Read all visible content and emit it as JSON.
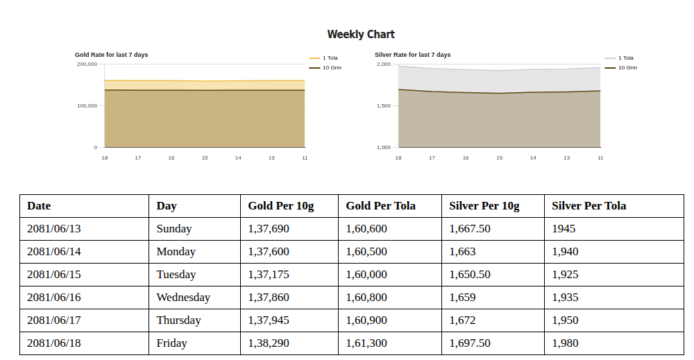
{
  "title": "Weekly Chart",
  "chart_data": [
    {
      "type": "line",
      "title": "Gold Rate for last 7 days",
      "categories": [
        "18",
        "17",
        "16",
        "15",
        "14",
        "13",
        "11"
      ],
      "series": [
        {
          "name": "1 Tola",
          "color": "#f0bf4c",
          "values": [
            161300,
            160900,
            160800,
            160000,
            160500,
            160600,
            160600
          ]
        },
        {
          "name": "10 Grm",
          "color": "#5e4a14",
          "values": [
            138290,
            137945,
            137860,
            137175,
            137600,
            137690,
            137700
          ]
        }
      ],
      "ylim": [
        0,
        200000
      ],
      "yticks": [
        0,
        {
          "value": 100000,
          "label": "100,000"
        },
        {
          "value": 200000,
          "label": "200,000"
        }
      ],
      "grid": true,
      "legend": "right"
    },
    {
      "type": "line",
      "title": "Silver Rate for last 7 days",
      "categories": [
        "18",
        "17",
        "16",
        "15",
        "14",
        "13",
        "11"
      ],
      "series": [
        {
          "name": "1 Tola",
          "color": "#cfcfcf",
          "values": [
            1980,
            1950,
            1935,
            1925,
            1940,
            1945,
            1960
          ]
        },
        {
          "name": "10 Grm",
          "color": "#5e4a14",
          "values": [
            1697.5,
            1672,
            1659,
            1650.5,
            1663,
            1667.5,
            1680
          ]
        }
      ],
      "ylim": [
        1000,
        2000
      ],
      "yticks": [
        {
          "value": 1000,
          "label": "1,000"
        },
        {
          "value": 1500,
          "label": "1,500"
        },
        {
          "value": 2000,
          "label": "2,000"
        }
      ],
      "grid": true,
      "legend": "right"
    }
  ],
  "table": {
    "header": [
      "Date",
      "Day",
      "Gold Per 10g",
      "Gold Per Tola",
      "Silver Per 10g",
      "Silver Per Tola"
    ],
    "rows": [
      [
        "2081/06/13",
        "Sunday",
        "1,37,690",
        "1,60,600",
        "1,667.50",
        "1945"
      ],
      [
        "2081/06/14",
        "Monday",
        "1,37,600",
        "1,60,500",
        "1,663",
        "1,940"
      ],
      [
        "2081/06/15",
        "Tuesday",
        "1,37,175",
        "1,60,000",
        "1,650.50",
        "1,925"
      ],
      [
        "2081/06/16",
        "Wednesday",
        "1,37,860",
        "1,60,800",
        "1,659",
        "1,935"
      ],
      [
        "2081/06/17",
        "Thursday",
        "1,37,945",
        "1,60,900",
        "1,672",
        "1,950"
      ],
      [
        "2081/06/18",
        "Friday",
        "1,38,290",
        "1,61,300",
        "1,697.50",
        "1,980"
      ]
    ]
  }
}
